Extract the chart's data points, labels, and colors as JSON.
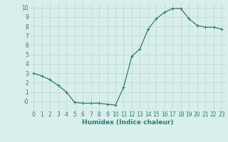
{
  "x": [
    0,
    1,
    2,
    3,
    4,
    5,
    6,
    7,
    8,
    9,
    10,
    11,
    12,
    13,
    14,
    15,
    16,
    17,
    18,
    19,
    20,
    21,
    22,
    23
  ],
  "y": [
    3.0,
    2.7,
    2.3,
    1.7,
    1.0,
    -0.1,
    -0.2,
    -0.2,
    -0.2,
    -0.3,
    -0.4,
    1.5,
    4.8,
    5.6,
    7.7,
    8.8,
    9.5,
    9.9,
    9.9,
    8.8,
    8.1,
    7.9,
    7.9,
    7.7
  ],
  "line_color": "#2e7d6e",
  "marker": "+",
  "marker_size": 3,
  "linewidth": 0.9,
  "markeredgewidth": 0.8,
  "xlabel": "Humidex (Indice chaleur)",
  "xlim": [
    -0.5,
    23.5
  ],
  "ylim": [
    -1.0,
    10.5
  ],
  "yticks": [
    0,
    1,
    2,
    3,
    4,
    5,
    6,
    7,
    8,
    9,
    10
  ],
  "ytick_labels": [
    "-0",
    "1",
    "2",
    "3",
    "4",
    "5",
    "6",
    "7",
    "8",
    "9",
    "10"
  ],
  "xticks": [
    0,
    1,
    2,
    3,
    4,
    5,
    6,
    7,
    8,
    9,
    10,
    11,
    12,
    13,
    14,
    15,
    16,
    17,
    18,
    19,
    20,
    21,
    22,
    23
  ],
  "background_color": "#d8eeeb",
  "grid_color": "#b8d8d2",
  "font_color": "#2e7d6e",
  "label_fontsize": 6.5,
  "tick_fontsize": 5.5
}
